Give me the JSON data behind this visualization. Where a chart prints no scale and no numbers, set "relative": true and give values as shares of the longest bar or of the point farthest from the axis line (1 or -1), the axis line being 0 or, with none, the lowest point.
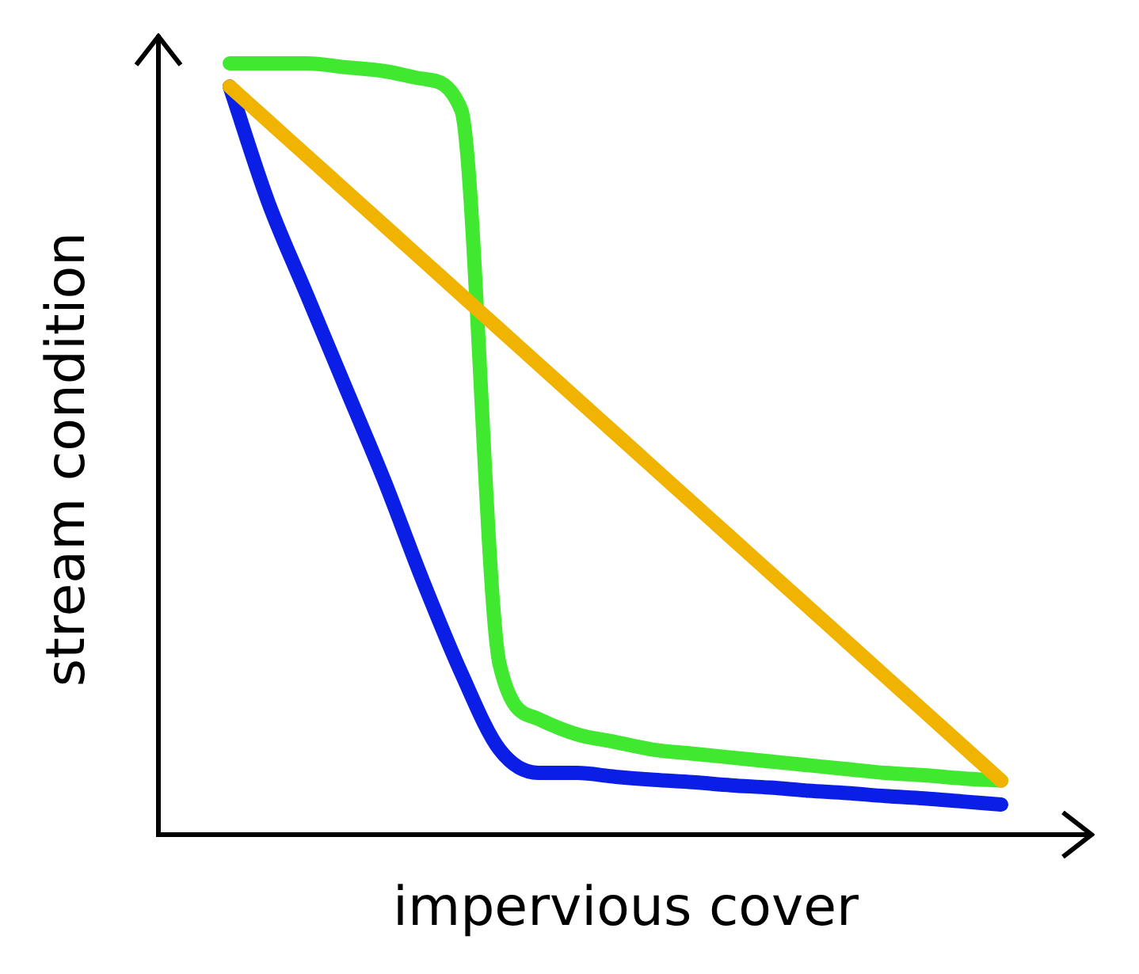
{
  "chart_data": {
    "type": "line",
    "relative": true,
    "xlabel": "impervious cover",
    "ylabel": "stream condition",
    "categories": [
      null,
      null,
      null,
      null,
      null,
      null,
      null,
      null,
      null,
      null,
      null,
      null,
      null,
      null,
      null,
      null,
      null,
      null,
      null,
      null,
      null
    ],
    "series": [
      {
        "color": "#f0b400",
        "values": [
          0.97,
          0.925,
          0.88,
          0.835,
          0.79,
          0.745,
          0.7,
          0.655,
          0.61,
          0.565,
          0.52,
          0.475,
          0.43,
          0.385,
          0.34,
          0.295,
          0.25,
          0.205,
          0.16,
          0.115,
          0.07
        ]
      },
      {
        "color": "#40e830",
        "values": [
          1.0,
          1.0,
          1.0,
          0.995,
          0.99,
          0.98,
          0.94,
          0.22,
          0.15,
          0.13,
          0.12,
          0.11,
          0.105,
          0.1,
          0.095,
          0.09,
          0.085,
          0.08,
          0.077,
          0.073,
          0.07
        ]
      },
      {
        "color": "#0a1ee6",
        "values": [
          0.97,
          0.82,
          0.7,
          0.58,
          0.46,
          0.33,
          0.21,
          0.11,
          0.08,
          0.08,
          0.075,
          0.071,
          0.068,
          0.064,
          0.061,
          0.057,
          0.054,
          0.05,
          0.047,
          0.043,
          0.039
        ]
      }
    ]
  }
}
